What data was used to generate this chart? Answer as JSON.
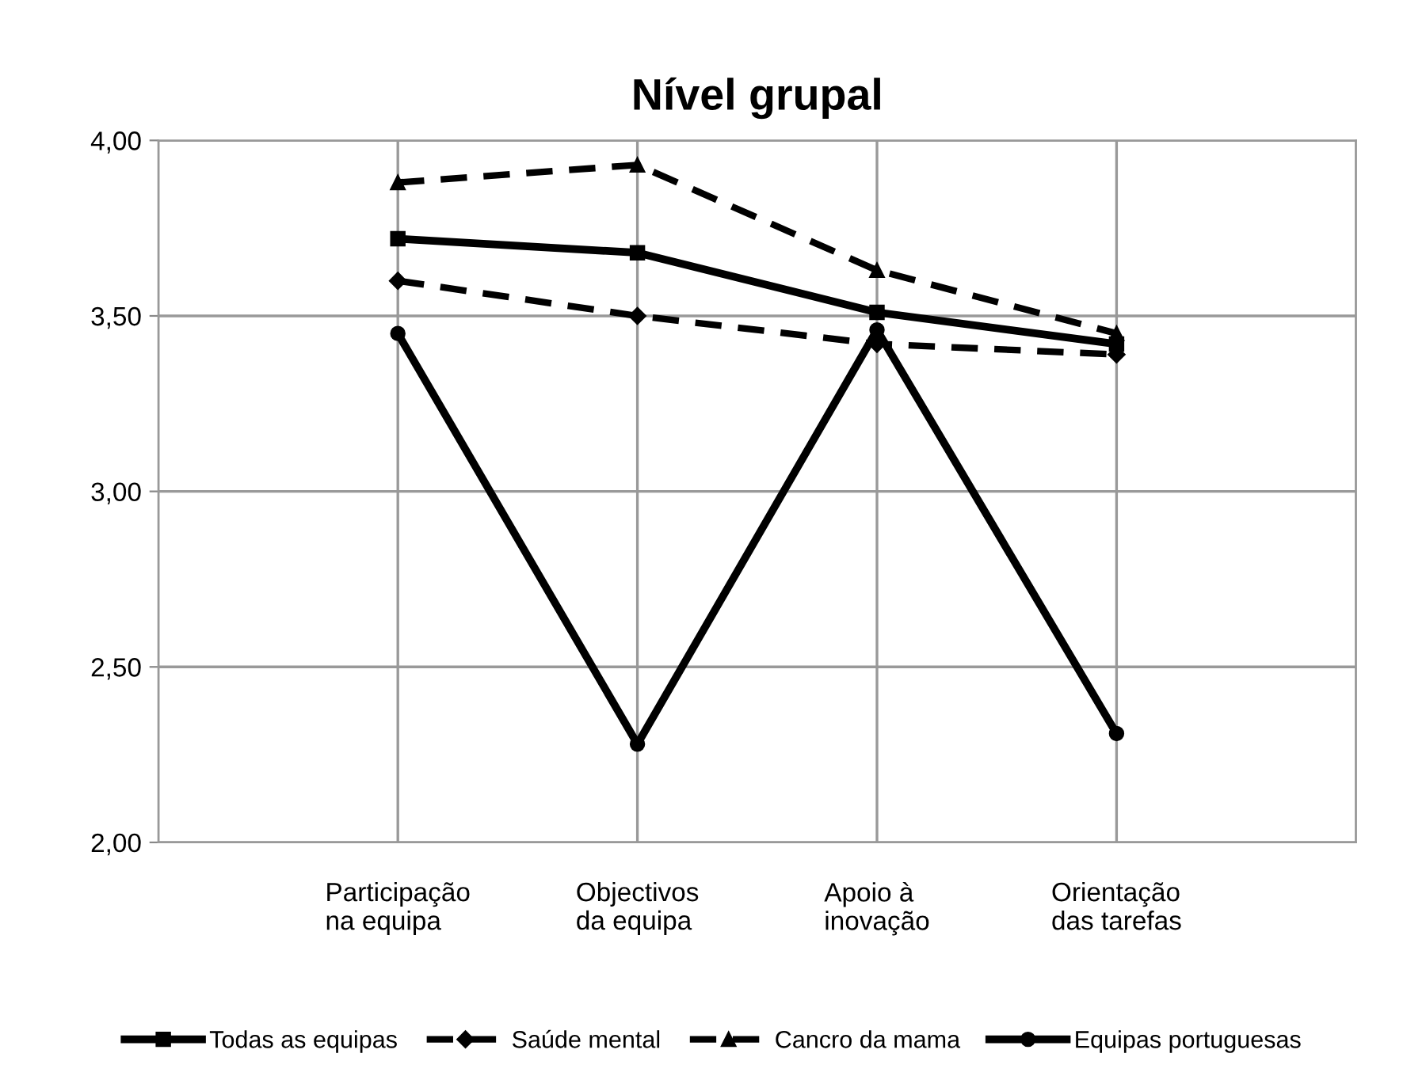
{
  "chart_data": {
    "type": "line",
    "title": "Nível grupal",
    "categories": [
      null,
      "Participação\nna equipa",
      "Objectivos\nda equipa",
      "Apoio à\ninovação",
      "Orientação\ndas tarefas",
      null
    ],
    "series": [
      {
        "name": "Todas as equipas",
        "color": "#000000",
        "values": [
          null,
          3.72,
          3.68,
          3.51,
          3.42,
          null
        ],
        "marker": "square",
        "line_style": "solid"
      },
      {
        "name": "Saúde mental",
        "color": "#000000",
        "values": [
          null,
          3.6,
          3.5,
          3.42,
          3.39,
          null
        ],
        "marker": "diamond",
        "line_style": "dashed"
      },
      {
        "name": "Cancro da mama",
        "color": "#000000",
        "values": [
          null,
          3.88,
          3.93,
          3.63,
          3.45,
          null
        ],
        "marker": "triangle",
        "line_style": "dashed"
      },
      {
        "name": "Equipas portuguesas",
        "color": "#000000",
        "values": [
          null,
          3.45,
          2.28,
          3.46,
          2.31,
          null
        ],
        "marker": "circle",
        "line_style": "solid"
      }
    ],
    "ylim": [
      2.0,
      4.0
    ],
    "yticks": [
      {
        "value": 2.0,
        "label": "2,00"
      },
      {
        "value": 2.5,
        "label": "2,50"
      },
      {
        "value": 3.0,
        "label": "3,00"
      },
      {
        "value": 3.5,
        "label": "3,50"
      },
      {
        "value": 4.0,
        "label": "4,00"
      }
    ],
    "grid": true,
    "legend": "bottom"
  }
}
